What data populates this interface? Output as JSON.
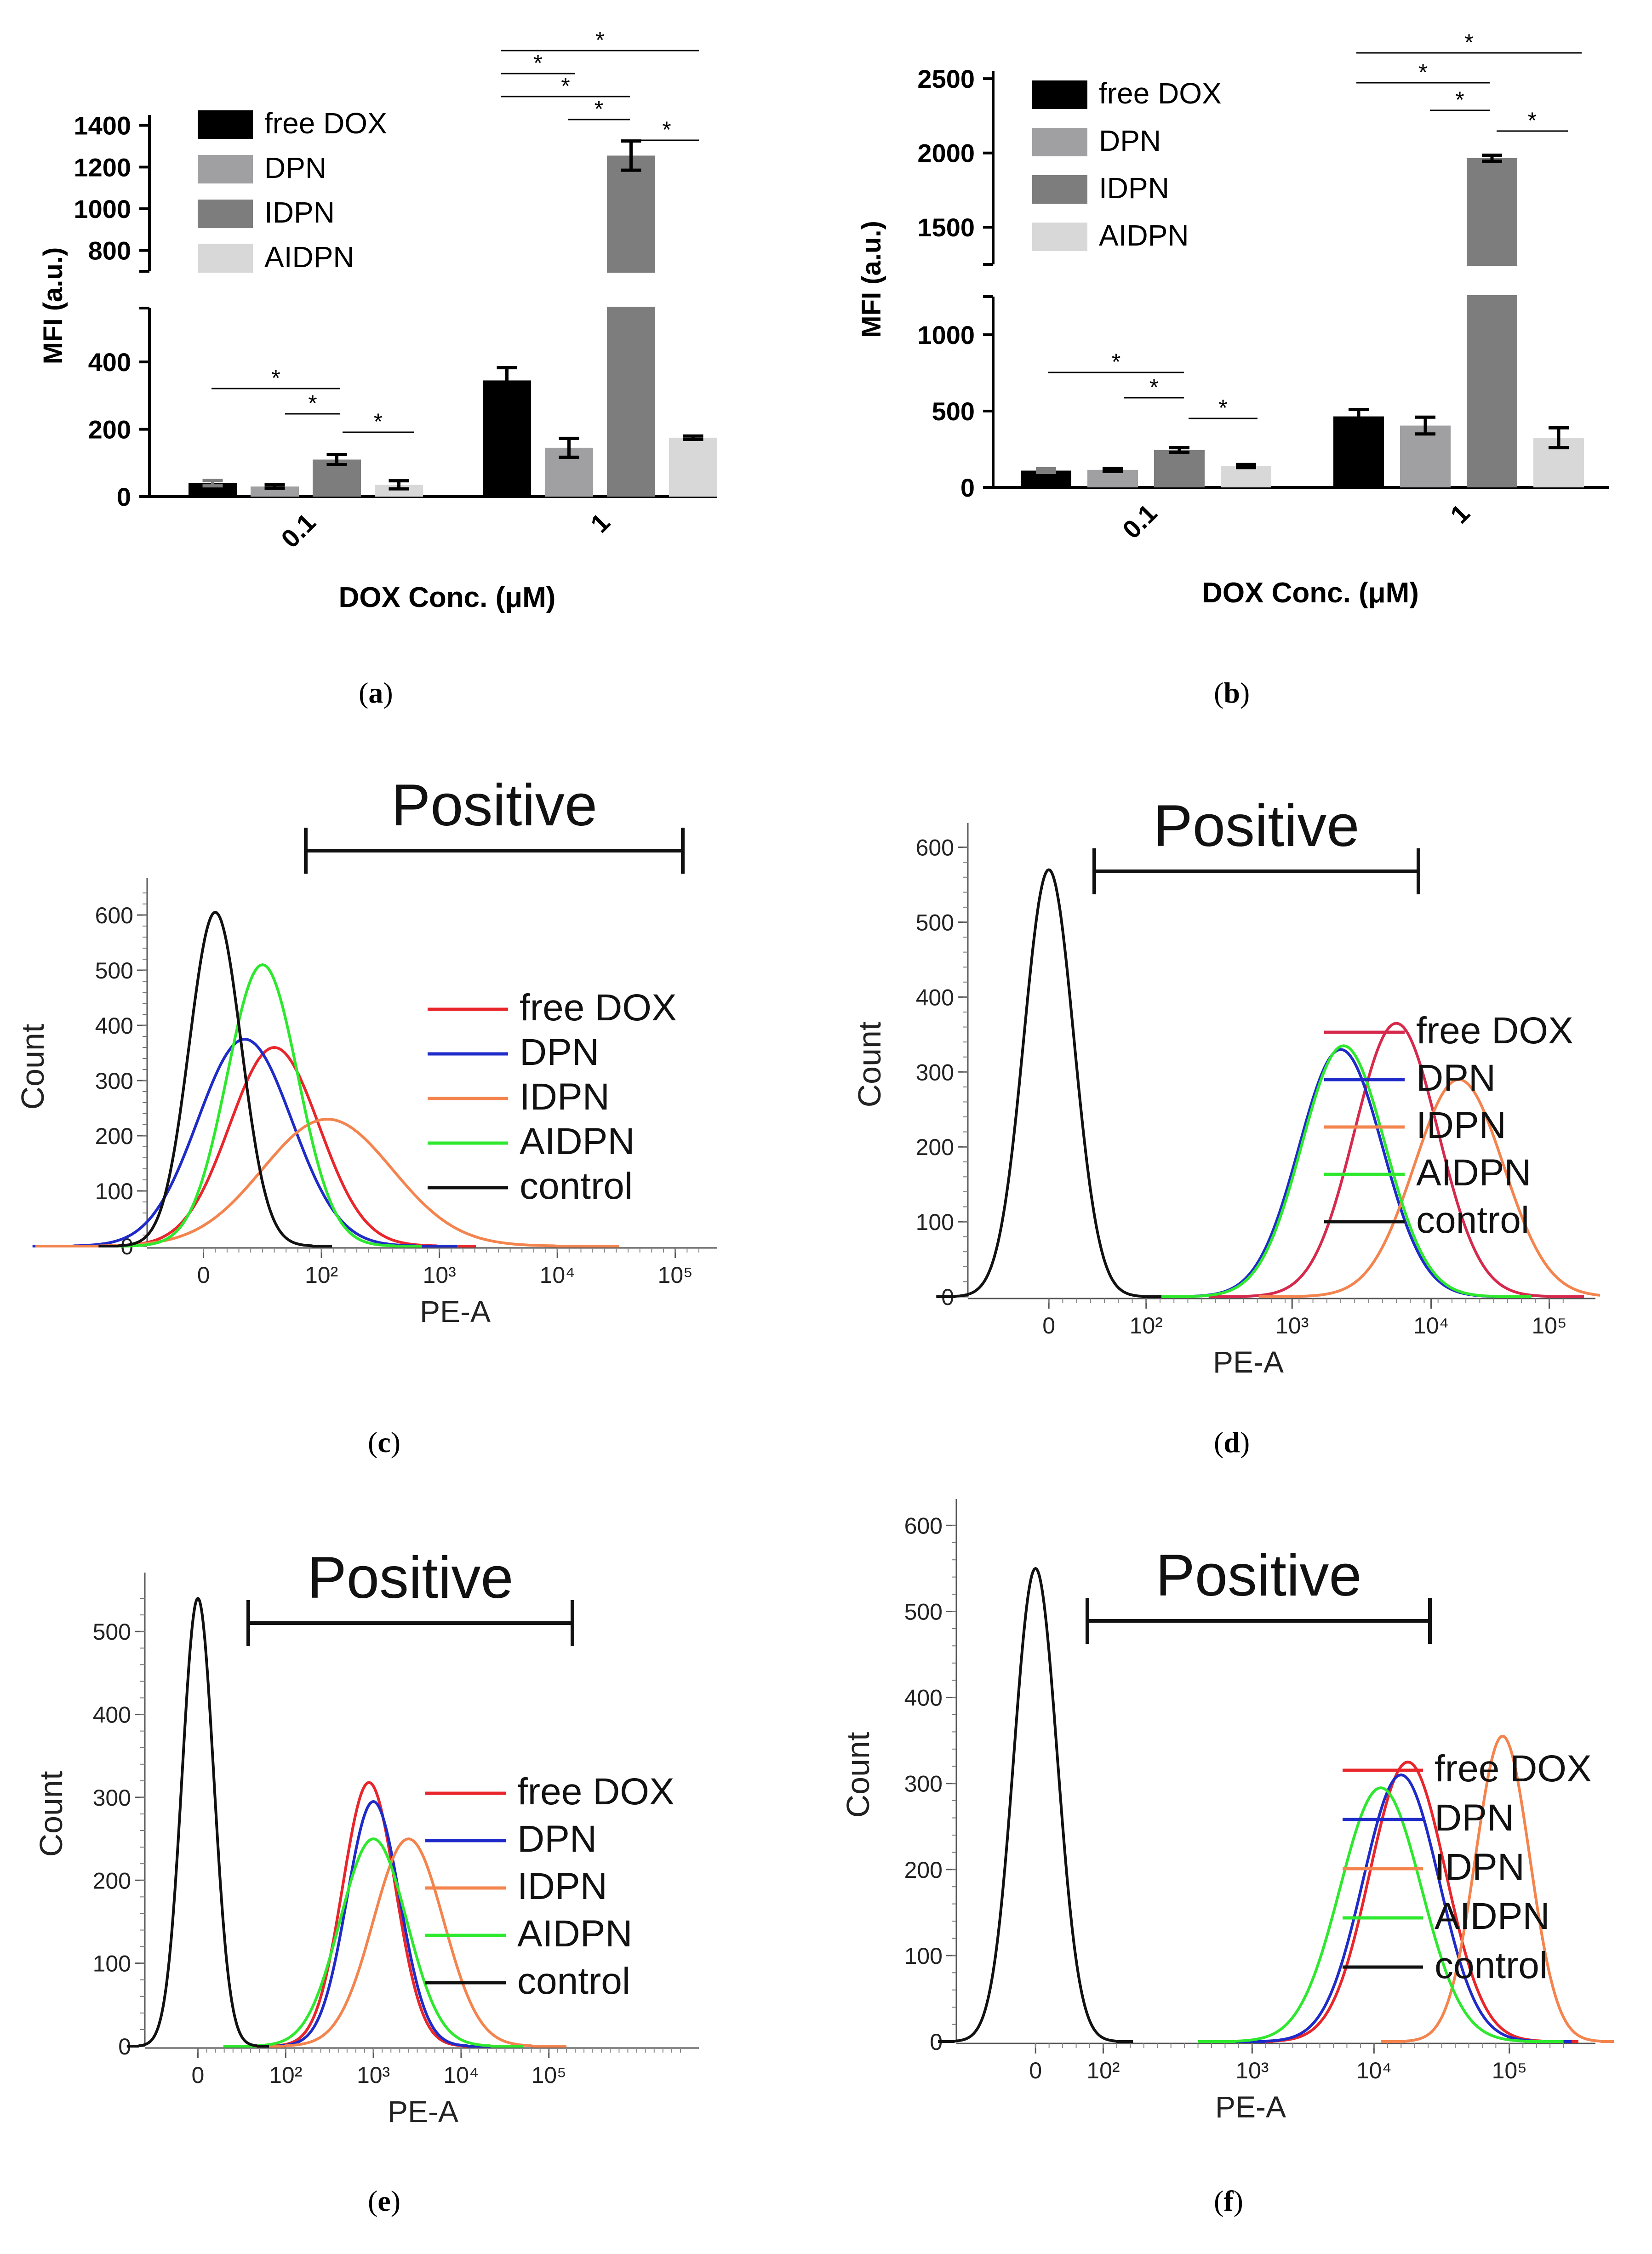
{
  "panels": [
    {
      "id": "a",
      "paren_open": "(",
      "letter": "a",
      "paren_close": ")"
    },
    {
      "id": "b",
      "paren_open": "(",
      "letter": "b",
      "paren_close": ")"
    },
    {
      "id": "c",
      "paren_open": "(",
      "letter": "c",
      "paren_close": ")"
    },
    {
      "id": "d",
      "paren_open": "(",
      "letter": "d",
      "paren_close": ")"
    },
    {
      "id": "e",
      "paren_open": "(",
      "letter": "e",
      "paren_close": ")"
    },
    {
      "id": "f",
      "paren_open": "(",
      "letter": "f",
      "paren_close": ")"
    }
  ],
  "chart_data": [
    {
      "panel": "a",
      "type": "bar",
      "ylabel": "MFI (a.u.)",
      "xlabel": "DOX Conc. (μM)",
      "categories": [
        "0.1",
        "1"
      ],
      "axis_break": {
        "lower": [
          0,
          560
        ],
        "upper": [
          700,
          1450
        ]
      },
      "yticks_lower": [
        "0",
        "200",
        "400"
      ],
      "yticks_upper": [
        "800",
        "1000",
        "1200",
        "1400"
      ],
      "series": [
        {
          "name": "free DOX",
          "color": "#000000",
          "values": [
            40,
            345
          ],
          "errors": [
            8,
            38
          ]
        },
        {
          "name": "DPN",
          "color": "#a0a0a3",
          "values": [
            30,
            145
          ],
          "errors": [
            5,
            28
          ]
        },
        {
          "name": "IDPN",
          "color": "#7d7d7d",
          "values": [
            110,
            1255
          ],
          "errors": [
            15,
            70
          ]
        },
        {
          "name": "AIDPN",
          "color": "#d8d8d8",
          "values": [
            35,
            175
          ],
          "errors": [
            12,
            5
          ]
        }
      ],
      "significance_marks": [
        "*",
        "*",
        "*",
        "*",
        "*",
        "*",
        "*",
        "*",
        "*"
      ]
    },
    {
      "panel": "b",
      "type": "bar",
      "ylabel": "MFI (a.u.)",
      "xlabel": "DOX Conc. (μM)",
      "categories": [
        "0.1",
        "1"
      ],
      "axis_break": {
        "lower": [
          0,
          1250
        ],
        "upper": [
          1250,
          2550
        ]
      },
      "yticks_lower": [
        "0",
        "500",
        "1000"
      ],
      "yticks_upper": [
        "1500",
        "2000",
        "2500"
      ],
      "series": [
        {
          "name": "free DOX",
          "color": "#000000",
          "values": [
            110,
            465
          ],
          "errors": [
            12,
            45
          ]
        },
        {
          "name": "DPN",
          "color": "#a0a0a3",
          "values": [
            115,
            405
          ],
          "errors": [
            10,
            55
          ]
        },
        {
          "name": "IDPN",
          "color": "#7d7d7d",
          "values": [
            245,
            1965
          ],
          "errors": [
            15,
            20
          ]
        },
        {
          "name": "AIDPN",
          "color": "#d8d8d8",
          "values": [
            140,
            325
          ],
          "errors": [
            10,
            65
          ]
        }
      ],
      "significance_marks": [
        "*",
        "*",
        "*",
        "*",
        "*",
        "*",
        "*",
        "*"
      ]
    },
    {
      "panel": "c",
      "type": "line",
      "ylabel": "Count",
      "xlabel": "PE-A",
      "region_label": "Positive",
      "ylim": [
        0,
        650
      ],
      "yticks": [
        "0",
        "100",
        "200",
        "300",
        "400",
        "500",
        "600"
      ],
      "xticks": [
        "0",
        "10²",
        "10³",
        "10⁴",
        "10⁵"
      ],
      "series": [
        {
          "name": "free DOX",
          "color": "#e8262b",
          "peak_x": 1.6,
          "peak_y": 360,
          "width": 0.38
        },
        {
          "name": "DPN",
          "color": "#1f2bc9",
          "peak_x": 1.35,
          "peak_y": 375,
          "width": 0.4
        },
        {
          "name": "IDPN",
          "color": "#f4844e",
          "peak_x": 2.05,
          "peak_y": 230,
          "width": 0.55
        },
        {
          "name": "AIDPN",
          "color": "#2ee82e",
          "peak_x": 1.5,
          "peak_y": 510,
          "width": 0.3
        },
        {
          "name": "control",
          "color": "#111111",
          "peak_x": 1.1,
          "peak_y": 605,
          "width": 0.22
        }
      ]
    },
    {
      "panel": "d",
      "type": "line",
      "ylabel": "Count",
      "xlabel": "PE-A",
      "region_label": "Positive",
      "ylim": [
        0,
        620
      ],
      "yticks": [
        "0",
        "100",
        "200",
        "300",
        "400",
        "500",
        "600"
      ],
      "xticks": [
        "0",
        "10²",
        "10³",
        "10⁴",
        "10⁵"
      ],
      "series": [
        {
          "name": "free DOX",
          "color": "#d62a4d",
          "peak_x": 2.5,
          "peak_y": 365,
          "width": 0.3
        },
        {
          "name": "DPN",
          "color": "#1f2bc9",
          "peak_x": 2.1,
          "peak_y": 330,
          "width": 0.3
        },
        {
          "name": "IDPN",
          "color": "#f4844e",
          "peak_x": 2.95,
          "peak_y": 290,
          "width": 0.32
        },
        {
          "name": "AIDPN",
          "color": "#2ee82e",
          "peak_x": 2.12,
          "peak_y": 335,
          "width": 0.3
        },
        {
          "name": "control",
          "color": "#111111",
          "peak_x": 0.0,
          "peak_y": 570,
          "width": 0.18
        }
      ]
    },
    {
      "panel": "e",
      "type": "line",
      "ylabel": "Count",
      "xlabel": "PE-A",
      "region_label": "Positive",
      "ylim": [
        0,
        560
      ],
      "yticks": [
        "0",
        "100",
        "200",
        "300",
        "400",
        "500"
      ],
      "xticks": [
        "0",
        "10²",
        "10³",
        "10⁴",
        "10⁵"
      ],
      "series": [
        {
          "name": "free DOX",
          "color": "#e8262b",
          "peak_x": 1.95,
          "peak_y": 318,
          "width": 0.3
        },
        {
          "name": "DPN",
          "color": "#1f2bc9",
          "peak_x": 2.0,
          "peak_y": 295,
          "width": 0.3
        },
        {
          "name": "IDPN",
          "color": "#f4844e",
          "peak_x": 2.4,
          "peak_y": 250,
          "width": 0.4
        },
        {
          "name": "AIDPN",
          "color": "#2ee82e",
          "peak_x": 2.0,
          "peak_y": 250,
          "width": 0.38
        },
        {
          "name": "control",
          "color": "#111111",
          "peak_x": 0.0,
          "peak_y": 540,
          "width": 0.18
        }
      ]
    },
    {
      "panel": "f",
      "type": "line",
      "ylabel": "Count",
      "xlabel": "PE-A",
      "region_label": "Positive",
      "ylim": [
        0,
        620
      ],
      "yticks": [
        "0",
        "100",
        "200",
        "300",
        "400",
        "500",
        "600"
      ],
      "xticks": [
        "0",
        "10²",
        "10³",
        "10⁴",
        "10⁵"
      ],
      "series": [
        {
          "name": "free DOX",
          "color": "#e8262b",
          "peak_x": 2.75,
          "peak_y": 325,
          "width": 0.28
        },
        {
          "name": "DPN",
          "color": "#1f2bc9",
          "peak_x": 2.7,
          "peak_y": 310,
          "width": 0.28
        },
        {
          "name": "IDPN",
          "color": "#f4844e",
          "peak_x": 3.45,
          "peak_y": 355,
          "width": 0.2
        },
        {
          "name": "AIDPN",
          "color": "#2ee82e",
          "peak_x": 2.55,
          "peak_y": 295,
          "width": 0.3
        },
        {
          "name": "control",
          "color": "#111111",
          "peak_x": 0.0,
          "peak_y": 550,
          "width": 0.16
        }
      ]
    }
  ]
}
